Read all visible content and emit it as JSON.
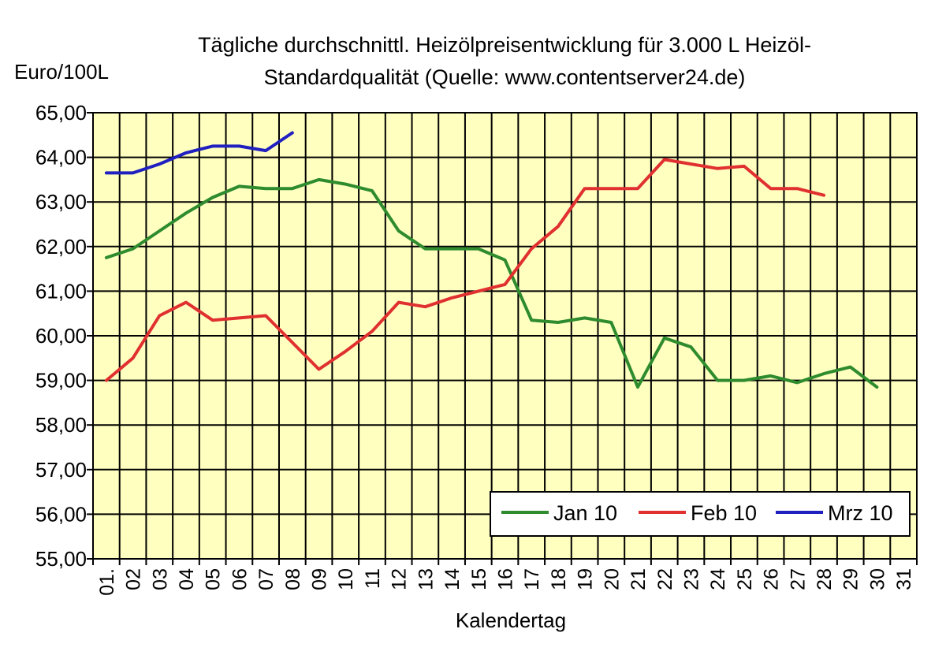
{
  "chart_data": {
    "type": "line",
    "title_lines": [
      "Tägliche durchschnittl. Heizölpreisentwicklung für 3.000 L Heizöl-",
      "Standardqualität (Quelle: www.contentserver24.de)"
    ],
    "ylabel": "Euro/100L",
    "xlabel": "Kalendertag",
    "ylim": [
      55,
      65
    ],
    "ytick_labels": [
      "55,00",
      "56,00",
      "57,00",
      "58,00",
      "59,00",
      "60,00",
      "61,00",
      "62,00",
      "63,00",
      "64,00",
      "65,00"
    ],
    "categories": [
      "01.",
      "02",
      "03",
      "04",
      "05",
      "06",
      "07",
      "08",
      "09",
      "10",
      "11",
      "12",
      "13",
      "14",
      "15",
      "16",
      "17",
      "18",
      "19",
      "20",
      "21",
      "22",
      "23",
      "24",
      "25",
      "26",
      "27",
      "28",
      "29",
      "30",
      "31"
    ],
    "grid": true,
    "plot_background": "#ffffc0",
    "legend_position": "bottom-right",
    "series": [
      {
        "name": "Jan 10",
        "color": "#2e8b2e",
        "values": [
          61.75,
          61.95,
          62.35,
          62.75,
          63.1,
          63.35,
          63.3,
          63.3,
          63.5,
          63.4,
          63.25,
          62.35,
          61.95,
          61.95,
          61.95,
          61.7,
          60.35,
          60.3,
          60.4,
          60.3,
          58.85,
          59.95,
          59.75,
          59.0,
          59.0,
          59.1,
          58.95,
          59.15,
          59.3,
          58.85,
          null
        ]
      },
      {
        "name": "Feb 10",
        "color": "#e03030",
        "values": [
          59.0,
          59.5,
          60.45,
          60.75,
          60.35,
          60.4,
          60.45,
          59.85,
          59.25,
          59.65,
          60.1,
          60.75,
          60.65,
          60.85,
          61.0,
          61.15,
          61.95,
          62.45,
          63.3,
          63.3,
          63.3,
          63.95,
          63.85,
          63.75,
          63.8,
          63.3,
          63.3,
          63.15,
          null,
          null,
          null
        ]
      },
      {
        "name": "Mrz 10",
        "color": "#2020c0",
        "values": [
          63.65,
          63.65,
          63.85,
          64.1,
          64.25,
          64.25,
          64.15,
          64.55,
          null,
          null,
          null,
          null,
          null,
          null,
          null,
          null,
          null,
          null,
          null,
          null,
          null,
          null,
          null,
          null,
          null,
          null,
          null,
          null,
          null,
          null,
          null
        ]
      }
    ]
  }
}
